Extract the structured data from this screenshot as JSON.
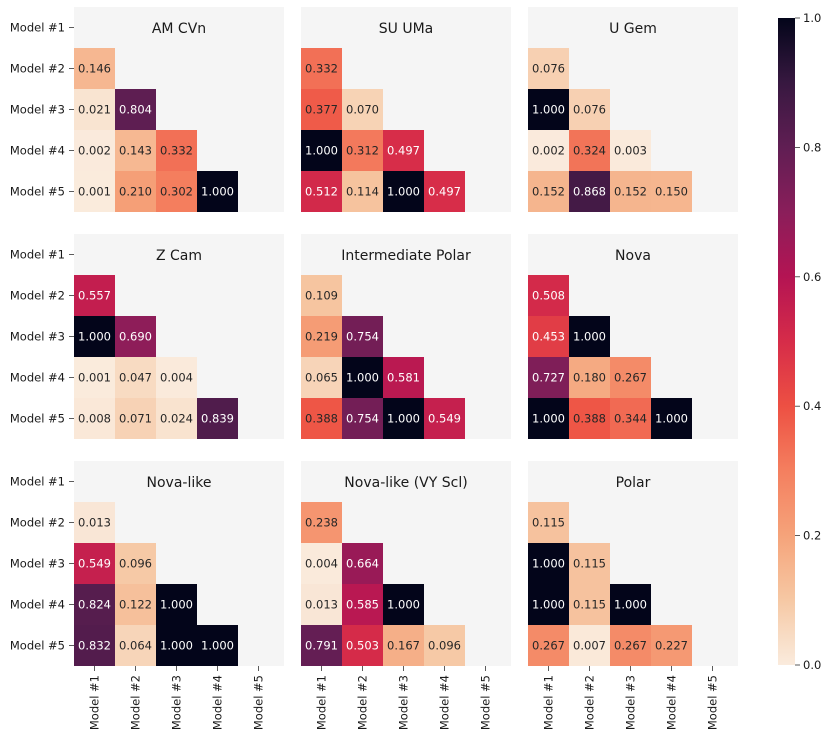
{
  "chart_data": {
    "type": "heatmap",
    "model_labels": [
      "Model #1",
      "Model #2",
      "Model #3",
      "Model #4",
      "Model #5"
    ],
    "colorbar": {
      "min": 0.0,
      "max": 1.0,
      "ticks": [
        "0.0",
        "0.2",
        "0.4",
        "0.6",
        "0.8",
        "1.0"
      ]
    },
    "panels": [
      {
        "title": "AM CVn",
        "cells": [
          [
            0.146
          ],
          [
            0.021,
            0.804
          ],
          [
            0.002,
            0.143,
            0.332
          ],
          [
            0.001,
            0.21,
            0.302,
            1.0
          ]
        ],
        "labels": [
          [
            "0.146"
          ],
          [
            "0.021",
            "0.804"
          ],
          [
            "0.002",
            "0.143",
            "0.332"
          ],
          [
            "0.001",
            "0.210",
            "0.302",
            "1.000"
          ]
        ]
      },
      {
        "title": "SU UMa",
        "cells": [
          [
            0.332
          ],
          [
            0.377,
            0.07
          ],
          [
            1.0,
            0.312,
            0.497
          ],
          [
            0.512,
            0.114,
            1.0,
            0.497
          ]
        ],
        "labels": [
          [
            "0.332"
          ],
          [
            "0.377",
            "0.070"
          ],
          [
            "1.000",
            "0.312",
            "0.497"
          ],
          [
            "0.512",
            "0.114",
            "1.000",
            "0.497"
          ]
        ]
      },
      {
        "title": "U Gem",
        "cells": [
          [
            0.076
          ],
          [
            1.0,
            0.076
          ],
          [
            0.002,
            0.324,
            0.003
          ],
          [
            0.152,
            0.868,
            0.152,
            0.15
          ]
        ],
        "labels": [
          [
            "0.076"
          ],
          [
            "1.000",
            "0.076"
          ],
          [
            "0.002",
            "0.324",
            "0.003"
          ],
          [
            "0.152",
            "0.868",
            "0.152",
            "0.150"
          ]
        ]
      },
      {
        "title": "Z Cam",
        "cells": [
          [
            0.557
          ],
          [
            1.0,
            0.69
          ],
          [
            0.001,
            0.047,
            0.004
          ],
          [
            0.008,
            0.071,
            0.024,
            0.839
          ]
        ],
        "labels": [
          [
            "0.557"
          ],
          [
            "1.000",
            "0.690"
          ],
          [
            "0.001",
            "0.047",
            "0.004"
          ],
          [
            "0.008",
            "0.071",
            "0.024",
            "0.839"
          ]
        ]
      },
      {
        "title": "Intermediate Polar",
        "cells": [
          [
            0.109
          ],
          [
            0.219,
            0.754
          ],
          [
            0.065,
            1.0,
            0.581
          ],
          [
            0.388,
            0.754,
            1.0,
            0.549
          ]
        ],
        "labels": [
          [
            "0.109"
          ],
          [
            "0.219",
            "0.754"
          ],
          [
            "0.065",
            "1.000",
            "0.581"
          ],
          [
            "0.388",
            "0.754",
            "1.000",
            "0.549"
          ]
        ]
      },
      {
        "title": "Nova",
        "cells": [
          [
            0.508
          ],
          [
            0.453,
            1.0
          ],
          [
            0.727,
            0.18,
            0.267
          ],
          [
            1.0,
            0.388,
            0.344,
            1.0
          ]
        ],
        "labels": [
          [
            "0.508"
          ],
          [
            "0.453",
            "1.000"
          ],
          [
            "0.727",
            "0.180",
            "0.267"
          ],
          [
            "1.000",
            "0.388",
            "0.344",
            "1.000"
          ]
        ]
      },
      {
        "title": "Nova-like",
        "cells": [
          [
            0.013
          ],
          [
            0.549,
            0.096
          ],
          [
            0.824,
            0.122,
            1.0
          ],
          [
            0.832,
            0.064,
            1.0,
            1.0
          ]
        ],
        "labels": [
          [
            "0.013"
          ],
          [
            "0.549",
            "0.096"
          ],
          [
            "0.824",
            "0.122",
            "1.000"
          ],
          [
            "0.832",
            "0.064",
            "1.000",
            "1.000"
          ]
        ]
      },
      {
        "title": "Nova-like (VY Scl)",
        "cells": [
          [
            0.238
          ],
          [
            0.004,
            0.664
          ],
          [
            0.013,
            0.585,
            1.0
          ],
          [
            0.791,
            0.503,
            0.167,
            0.096
          ]
        ],
        "labels": [
          [
            "0.238"
          ],
          [
            "0.004",
            "0.664"
          ],
          [
            "0.013",
            "0.585",
            "1.000"
          ],
          [
            "0.791",
            "0.503",
            "0.167",
            "0.096"
          ]
        ]
      },
      {
        "title": "Polar",
        "cells": [
          [
            0.115
          ],
          [
            1.0,
            0.115
          ],
          [
            1.0,
            0.115,
            1.0
          ],
          [
            0.267,
            0.007,
            0.267,
            0.227
          ]
        ],
        "labels": [
          [
            "0.115"
          ],
          [
            "1.000",
            "0.115"
          ],
          [
            "1.000",
            "0.115",
            "1.000"
          ],
          [
            "0.267",
            "0.007",
            "0.267",
            "0.227"
          ]
        ]
      }
    ]
  }
}
